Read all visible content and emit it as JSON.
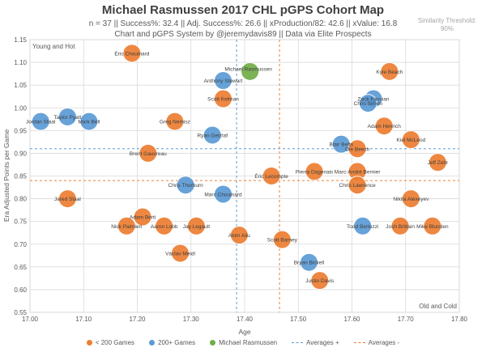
{
  "header": {
    "title": "Michael Rasmussen 2017 CHL pGPS Cohort Map",
    "stats": "n = 37 || Success%: 32.4 || Adj. Success%: 26.6 || xProduction/82: 42.6 || xValue: 16.8",
    "credit": "Chart and pGPS System by @jeremydavis89 || Data via Elite Prospects",
    "similarity_line1": "Similarity Threshold:",
    "similarity_line2": "90%"
  },
  "colors": {
    "under200": "#ED7D31",
    "over200": "#5B9BD5",
    "subject": "#70AD47",
    "grid": "#D9D9D9"
  },
  "chart_data": {
    "type": "scatter",
    "title": "Michael Rasmussen 2017 CHL pGPS Cohort Map",
    "xlabel": "Age",
    "ylabel": "Era Adjusted Points per Game",
    "xlim": [
      17.0,
      17.8
    ],
    "ylim": [
      0.55,
      1.15
    ],
    "x_ticks": [
      "17.00",
      "17.10",
      "17.20",
      "17.30",
      "17.40",
      "17.50",
      "17.60",
      "17.70",
      "17.80"
    ],
    "y_ticks": [
      "0.55",
      "0.60",
      "0.65",
      "0.70",
      "0.75",
      "0.80",
      "0.85",
      "0.90",
      "0.95",
      "1.00",
      "1.05",
      "1.10",
      "1.15"
    ],
    "corner_labels": {
      "top_left": "Young and Hot",
      "bottom_right": "Old and Cold"
    },
    "averages_plus": {
      "x": 17.385,
      "y": 0.91
    },
    "averages_minus": {
      "x": 17.465,
      "y": 0.84
    },
    "grid": true,
    "legend_position": "bottom",
    "legend": [
      {
        "key": "under200",
        "label": "< 200 Games",
        "type": "dot"
      },
      {
        "key": "over200",
        "label": "200+ Games",
        "type": "dot"
      },
      {
        "key": "subject",
        "label": "Michael Rasmussen",
        "type": "dot"
      },
      {
        "key": "avg_plus",
        "label": "Averages +",
        "type": "line",
        "color": "#5B9BD5"
      },
      {
        "key": "avg_minus",
        "label": "Averages -",
        "type": "line",
        "color": "#ED7D31"
      }
    ],
    "points": [
      {
        "name": "Michael Rasmussen",
        "x": 17.41,
        "y": 1.08,
        "group": "subject"
      },
      {
        "name": "Éric Chouinard",
        "x": 17.19,
        "y": 1.12,
        "group": "under200"
      },
      {
        "name": "Kyle Beach",
        "x": 17.67,
        "y": 1.08,
        "group": "under200"
      },
      {
        "name": "Anthony Stewart",
        "x": 17.36,
        "y": 1.06,
        "group": "over200"
      },
      {
        "name": "Scott Kelman",
        "x": 17.36,
        "y": 1.02,
        "group": "under200"
      },
      {
        "name": "Zack Kassian",
        "x": 17.64,
        "y": 1.02,
        "group": "over200"
      },
      {
        "name": "Chris Simon",
        "x": 17.63,
        "y": 1.01,
        "group": "over200"
      },
      {
        "name": "Jordan Staal",
        "x": 17.02,
        "y": 0.97,
        "group": "over200"
      },
      {
        "name": "Taylor Pyatt",
        "x": 17.07,
        "y": 0.98,
        "group": "over200"
      },
      {
        "name": "Mark Bell",
        "x": 17.11,
        "y": 0.97,
        "group": "over200"
      },
      {
        "name": "Greg Nemisz",
        "x": 17.27,
        "y": 0.97,
        "group": "under200"
      },
      {
        "name": "Adam Henrich",
        "x": 17.66,
        "y": 0.96,
        "group": "under200"
      },
      {
        "name": "Ryan Getzlaf",
        "x": 17.34,
        "y": 0.94,
        "group": "over200"
      },
      {
        "name": "Kiel McLeod",
        "x": 17.71,
        "y": 0.93,
        "group": "under200"
      },
      {
        "name": "Blair Betts",
        "x": 17.58,
        "y": 0.92,
        "group": "over200"
      },
      {
        "name": "Ole Beech",
        "x": 17.61,
        "y": 0.91,
        "group": "under200"
      },
      {
        "name": "Brent Gauvreau",
        "x": 17.22,
        "y": 0.9,
        "group": "under200"
      },
      {
        "name": "Jeff Zehr",
        "x": 17.76,
        "y": 0.88,
        "group": "under200"
      },
      {
        "name": "Pierra Dagenais",
        "x": 17.53,
        "y": 0.86,
        "group": "under200"
      },
      {
        "name": "Marc-André Bernier",
        "x": 17.61,
        "y": 0.86,
        "group": "under200"
      },
      {
        "name": "Éric Lecompte",
        "x": 17.45,
        "y": 0.85,
        "group": "under200"
      },
      {
        "name": "Chris Thorburn",
        "x": 17.29,
        "y": 0.83,
        "group": "over200"
      },
      {
        "name": "Chris Lawrence",
        "x": 17.61,
        "y": 0.83,
        "group": "under200"
      },
      {
        "name": "Marc Chouinard",
        "x": 17.36,
        "y": 0.81,
        "group": "over200"
      },
      {
        "name": "Jared Staal",
        "x": 17.07,
        "y": 0.8,
        "group": "under200"
      },
      {
        "name": "Nikita Alexeyev",
        "x": 17.71,
        "y": 0.8,
        "group": "under200"
      },
      {
        "name": "Adam Berti",
        "x": 17.21,
        "y": 0.76,
        "group": "under200"
      },
      {
        "name": "Nick Palmieri",
        "x": 17.18,
        "y": 0.74,
        "group": "under200"
      },
      {
        "name": "Aaron Lobb",
        "x": 17.25,
        "y": 0.74,
        "group": "under200"
      },
      {
        "name": "Jay Legault",
        "x": 17.31,
        "y": 0.74,
        "group": "under200"
      },
      {
        "name": "Todd Bertuzzi",
        "x": 17.62,
        "y": 0.74,
        "group": "over200"
      },
      {
        "name": "Josh Brittain",
        "x": 17.69,
        "y": 0.74,
        "group": "under200"
      },
      {
        "name": "Mike Blunden",
        "x": 17.75,
        "y": 0.74,
        "group": "under200"
      },
      {
        "name": "Akim Aliu",
        "x": 17.39,
        "y": 0.72,
        "group": "under200"
      },
      {
        "name": "Scott Barney",
        "x": 17.47,
        "y": 0.71,
        "group": "under200"
      },
      {
        "name": "Václav Meidl",
        "x": 17.28,
        "y": 0.68,
        "group": "under200"
      },
      {
        "name": "Bryan Bickell",
        "x": 17.52,
        "y": 0.66,
        "group": "over200"
      },
      {
        "name": "Justin Davis",
        "x": 17.54,
        "y": 0.62,
        "group": "under200"
      }
    ]
  }
}
